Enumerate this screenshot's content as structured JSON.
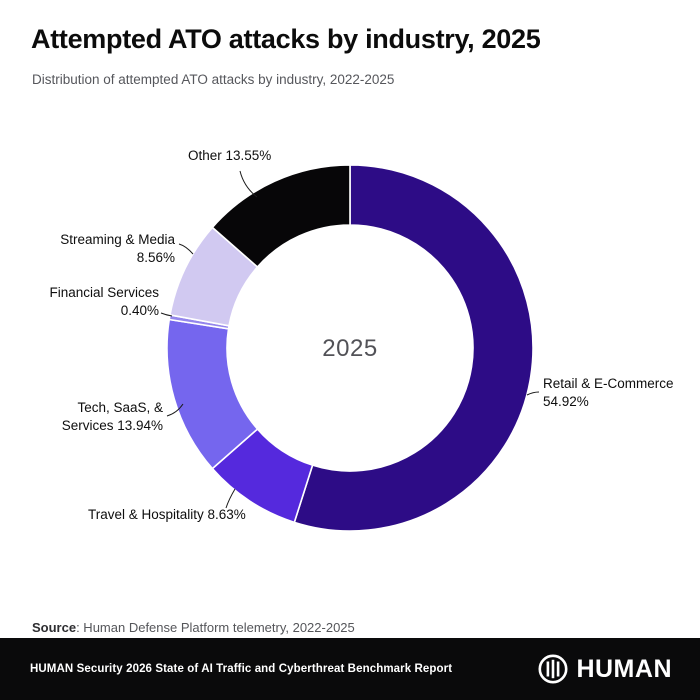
{
  "header": {
    "title": "Attempted ATO attacks by industry, 2025",
    "subtitle": "Distribution of attempted ATO attacks by industry, 2022-2025"
  },
  "chart_data": {
    "type": "pie",
    "variant": "donut",
    "title": "Attempted ATO attacks by industry, 2025",
    "center_label": "2025",
    "unit": "%",
    "start_angle_deg": 0,
    "direction": "clockwise",
    "slices": [
      {
        "name": "Retail & E-Commerce",
        "value": 54.92,
        "color": "#2d0c86",
        "label_lines": [
          "Retail & E-Commerce",
          "54.92%"
        ]
      },
      {
        "name": "Travel & Hospitality",
        "value": 8.63,
        "color": "#5529dd",
        "label_lines": [
          "Travel & Hospitality 8.63%"
        ]
      },
      {
        "name": "Tech, SaaS, & Services",
        "value": 13.94,
        "color": "#7566ee",
        "label_lines": [
          "Tech, SaaS, &",
          "Services 13.94%"
        ]
      },
      {
        "name": "Financial Services",
        "value": 0.4,
        "color": "#9486ec",
        "label_lines": [
          "Financial Services",
          "0.40%"
        ]
      },
      {
        "name": "Streaming & Media",
        "value": 8.56,
        "color": "#d1c9f1",
        "label_lines": [
          "Streaming & Media",
          "8.56%"
        ]
      },
      {
        "name": "Other",
        "value": 13.55,
        "color": "#070608",
        "label_lines": [
          "Other 13.55%"
        ]
      }
    ]
  },
  "source": {
    "prefix": "Source",
    "text": ": Human Defense Platform telemetry, 2022-2025"
  },
  "footer": {
    "report_title": "HUMAN Security 2026 State of AI Traffic and Cyberthreat Benchmark Report",
    "brand": "HUMAN"
  }
}
